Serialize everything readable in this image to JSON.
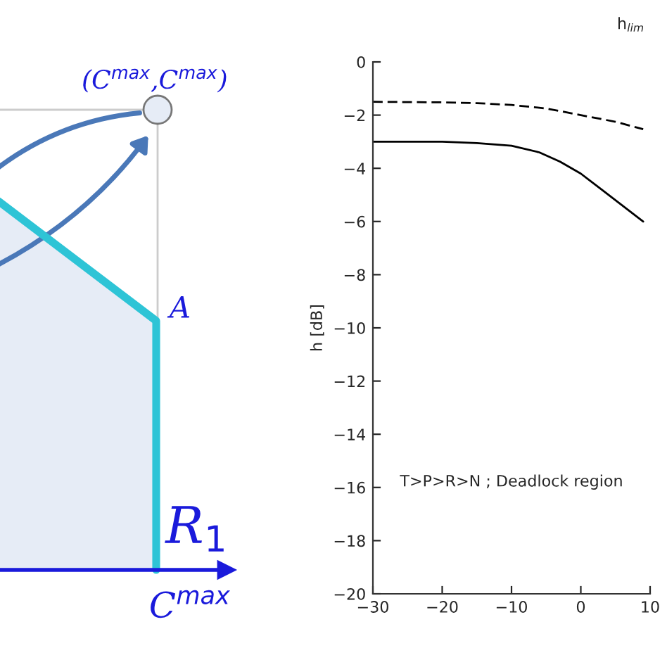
{
  "chart_data": [
    {
      "type": "other",
      "annotations": [
        "(C$^{max}$,C$^{max}$)",
        "A",
        "R$_{1}$",
        "C$^{max}$"
      ]
    },
    {
      "type": "line",
      "ylabel": "h [dB]",
      "xlim": [
        -30,
        10
      ],
      "ylim": [
        -20,
        0
      ],
      "xticks": [
        -30,
        -20,
        -10,
        0,
        10
      ],
      "yticks": [
        -20,
        -18,
        -16,
        -14,
        -12,
        -10,
        -8,
        -6,
        -4,
        -2,
        0
      ],
      "grid": false,
      "legend": false,
      "annotations": [
        {
          "text": "h$_{lim}$"
        },
        {
          "text": "T>P>R>N ; Deadlock region"
        }
      ],
      "series": [
        {
          "color": "#000000",
          "line_style": "solid",
          "x": [
            -30,
            -20,
            -15,
            -10,
            -6,
            -3,
            0,
            3,
            6,
            9
          ],
          "values": [
            -3.0,
            -3.0,
            -3.05,
            -3.15,
            -3.4,
            -3.75,
            -4.2,
            -4.8,
            -5.4,
            -6.0
          ]
        },
        {
          "color": "#000000",
          "line_style": "dashed",
          "x": [
            -30,
            -20,
            -15,
            -10,
            -5,
            0,
            5,
            9
          ],
          "values": [
            -1.5,
            -1.52,
            -1.55,
            -1.62,
            -1.75,
            -2.0,
            -2.25,
            -2.53
          ]
        }
      ]
    }
  ]
}
